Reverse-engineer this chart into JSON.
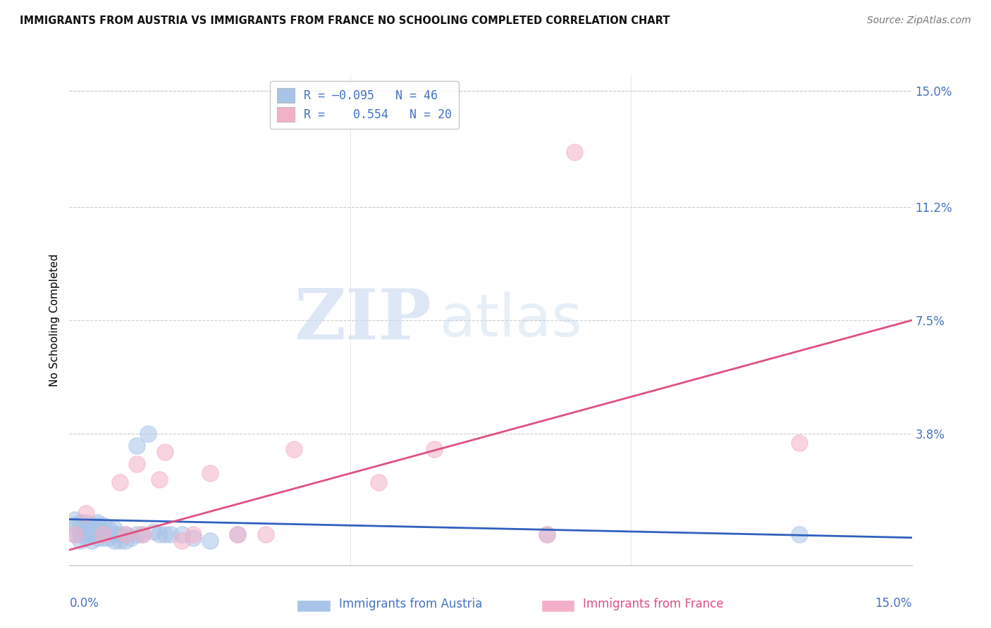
{
  "title": "IMMIGRANTS FROM AUSTRIA VS IMMIGRANTS FROM FRANCE NO SCHOOLING COMPLETED CORRELATION CHART",
  "source": "Source: ZipAtlas.com",
  "ylabel": "No Schooling Completed",
  "ytick_labels": [
    "15.0%",
    "11.2%",
    "7.5%",
    "3.8%"
  ],
  "ytick_values": [
    0.15,
    0.112,
    0.075,
    0.038
  ],
  "xlim": [
    0.0,
    0.15
  ],
  "ylim": [
    -0.005,
    0.155
  ],
  "austria_R": -0.095,
  "austria_N": 46,
  "france_R": 0.554,
  "france_N": 20,
  "austria_color": "#a8c4e8",
  "france_color": "#f4b0c8",
  "austria_line_color": "#3060c0",
  "france_line_color": "#e05080",
  "austria_line_x0": 0.0,
  "austria_line_y0": 0.01,
  "austria_line_x1": 0.15,
  "austria_line_y1": 0.004,
  "france_line_x0": 0.0,
  "france_line_y0": 0.0,
  "france_line_x1": 0.15,
  "france_line_y1": 0.075,
  "austria_scatter_x": [
    0.001,
    0.001,
    0.001,
    0.002,
    0.002,
    0.002,
    0.002,
    0.003,
    0.003,
    0.003,
    0.003,
    0.004,
    0.004,
    0.004,
    0.004,
    0.005,
    0.005,
    0.005,
    0.005,
    0.006,
    0.006,
    0.006,
    0.007,
    0.007,
    0.008,
    0.008,
    0.008,
    0.009,
    0.009,
    0.01,
    0.01,
    0.011,
    0.012,
    0.012,
    0.013,
    0.014,
    0.015,
    0.016,
    0.017,
    0.018,
    0.02,
    0.022,
    0.025,
    0.03,
    0.085,
    0.13
  ],
  "austria_scatter_y": [
    0.005,
    0.008,
    0.01,
    0.003,
    0.005,
    0.007,
    0.009,
    0.004,
    0.006,
    0.007,
    0.009,
    0.003,
    0.005,
    0.007,
    0.008,
    0.004,
    0.006,
    0.008,
    0.009,
    0.004,
    0.006,
    0.008,
    0.004,
    0.007,
    0.003,
    0.005,
    0.007,
    0.003,
    0.005,
    0.003,
    0.005,
    0.004,
    0.005,
    0.034,
    0.005,
    0.038,
    0.006,
    0.005,
    0.005,
    0.005,
    0.005,
    0.004,
    0.003,
    0.005,
    0.005,
    0.005
  ],
  "france_scatter_x": [
    0.001,
    0.003,
    0.006,
    0.009,
    0.01,
    0.012,
    0.013,
    0.016,
    0.017,
    0.02,
    0.022,
    0.025,
    0.03,
    0.035,
    0.04,
    0.055,
    0.065,
    0.085,
    0.09,
    0.13
  ],
  "france_scatter_y": [
    0.005,
    0.012,
    0.005,
    0.022,
    0.005,
    0.028,
    0.005,
    0.023,
    0.032,
    0.003,
    0.005,
    0.025,
    0.005,
    0.005,
    0.033,
    0.022,
    0.033,
    0.005,
    0.13,
    0.035
  ]
}
